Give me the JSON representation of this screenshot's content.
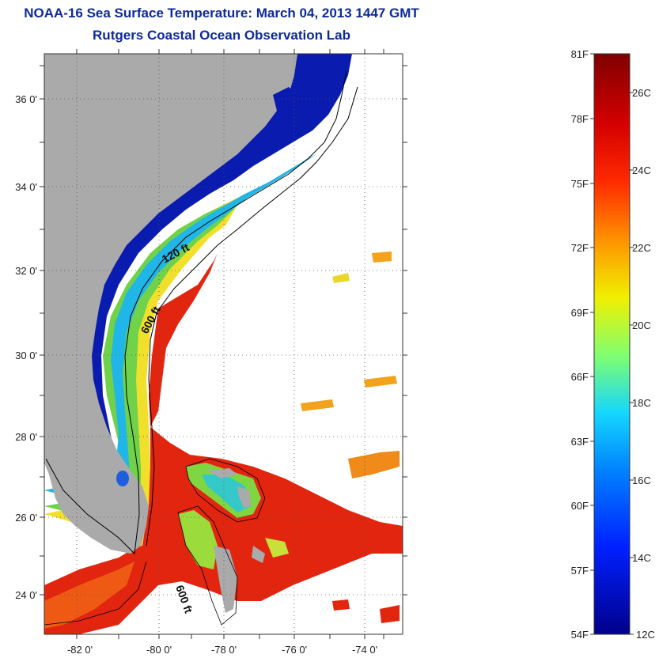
{
  "title": {
    "line1": "NOAA-16 Sea Surface Temperature:  March 04, 2013 1447 GMT",
    "line2": "Rutgers Coastal Ocean Observation Lab"
  },
  "map": {
    "lat_labels": [
      "36 0'",
      "34 0'",
      "32 0'",
      "30 0'",
      "28 0'",
      "26 0'",
      "24 0'"
    ],
    "lon_labels": [
      "-82 0'",
      "-80 0'",
      "-78 0'",
      "-76 0'",
      "-74 0'"
    ],
    "contour_labels": [
      "120 ft",
      "600 ft",
      "600 ft"
    ],
    "colors": {
      "land": "#aaaaaa",
      "cold": "#0a1bb0",
      "warm": "#e8230f"
    }
  },
  "colorbar": {
    "fahrenheit": [
      "81F",
      "78F",
      "75F",
      "72F",
      "69F",
      "66F",
      "63F",
      "60F",
      "57F",
      "54F"
    ],
    "celsius": [
      "26C",
      "24C",
      "22C",
      "20C",
      "18C",
      "16C",
      "14C",
      "12C"
    ]
  }
}
